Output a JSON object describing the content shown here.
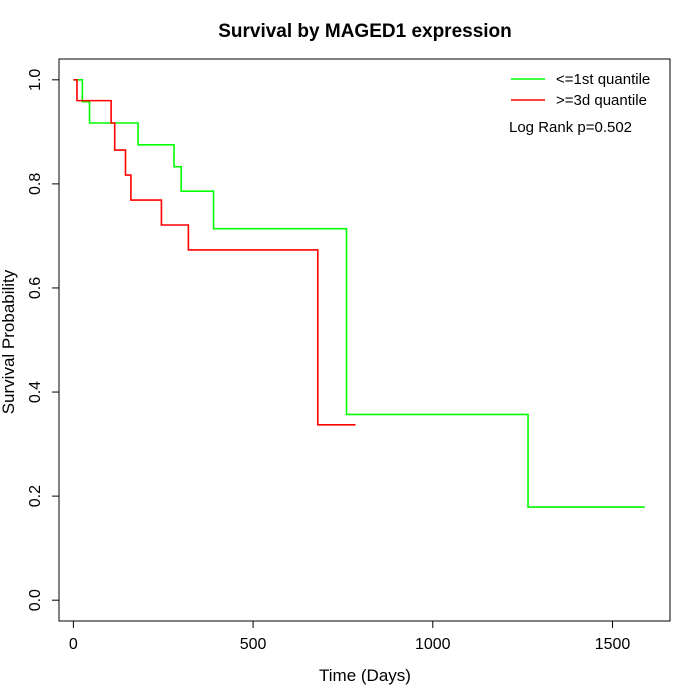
{
  "chart_data": {
    "type": "line",
    "title": "Survival by MAGED1 expression",
    "xlabel": "Time (Days)",
    "ylabel": "Survival Probability",
    "xlim": [
      -40,
      1660
    ],
    "ylim": [
      -0.04,
      1.04
    ],
    "xticks": [
      0,
      500,
      1000,
      1500
    ],
    "yticks": [
      0.0,
      0.2,
      0.4,
      0.6,
      0.8,
      1.0
    ],
    "xtick_labels": [
      "0",
      "500",
      "1000",
      "1500"
    ],
    "ytick_labels": [
      "0.0",
      "0.2",
      "0.4",
      "0.6",
      "0.8",
      "1.0"
    ],
    "grid": false,
    "legend_position": "top-right",
    "annotation": "Log Rank p=0.502",
    "series": [
      {
        "name": "<=1st quantile",
        "color": "#00ff00",
        "step": true,
        "x": [
          0,
          25,
          45,
          180,
          280,
          300,
          390,
          760,
          1265,
          1590
        ],
        "y": [
          1.0,
          0.958,
          0.917,
          0.875,
          0.833,
          0.786,
          0.714,
          0.357,
          0.179,
          0.179
        ]
      },
      {
        "name": ">=3d quantile",
        "color": "#ff0000",
        "step": true,
        "x": [
          0,
          10,
          105,
          115,
          145,
          160,
          245,
          320,
          680,
          785
        ],
        "y": [
          1.0,
          0.96,
          0.917,
          0.865,
          0.817,
          0.769,
          0.721,
          0.673,
          0.337,
          0.337
        ]
      }
    ]
  }
}
